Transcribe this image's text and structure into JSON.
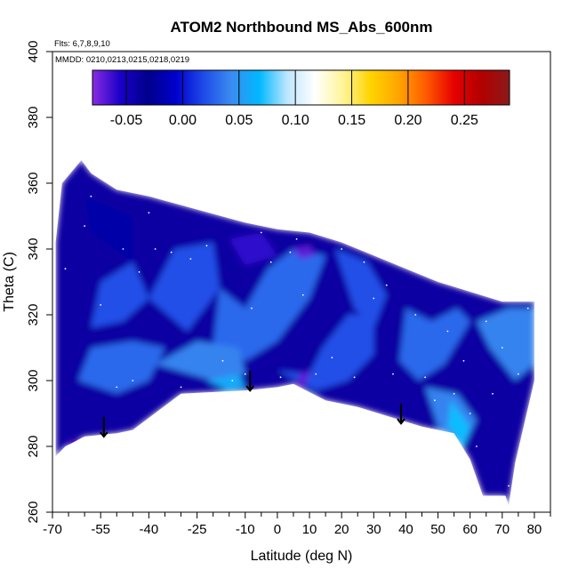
{
  "chart_data": {
    "type": "heatmap",
    "title": "ATOM2 Northbound MS_Abs_600nm",
    "annotations": {
      "flights": "Flts: 6,7,8,9,10",
      "dates": "MMDD: 0210,0213,0215,0218,0219"
    },
    "xlabel": "Latitude (deg N)",
    "ylabel": "Theta (C)",
    "xlim": [
      -70,
      85
    ],
    "ylim": [
      260,
      400
    ],
    "x_major_ticks": [
      -70,
      -55,
      -40,
      -25,
      -10,
      0,
      10,
      20,
      30,
      40,
      50,
      60,
      70,
      80
    ],
    "x_minor_ticks": [
      -65,
      -60,
      -50,
      -45,
      -35,
      -30,
      -20,
      -15,
      -5,
      5,
      15,
      25,
      35,
      45,
      55,
      65,
      75,
      85
    ],
    "y_ticks": [
      260,
      280,
      300,
      320,
      340,
      360,
      380,
      400
    ],
    "colorbar": {
      "range": [
        -0.08,
        0.29
      ],
      "ticks": [
        -0.05,
        0.0,
        0.05,
        0.1,
        0.15,
        0.2,
        0.25
      ],
      "tick_labels": [
        "-0.05",
        "0.00",
        "0.05",
        "0.10",
        "0.15",
        "0.20",
        "0.25"
      ],
      "colors": [
        "#8a2be2",
        "#1a00c8",
        "#00008b",
        "#0000cd",
        "#1e4be8",
        "#3a8cf0",
        "#00b8ff",
        "#bde6ff",
        "#ffffff",
        "#fff59a",
        "#ffd400",
        "#ffa500",
        "#ff5a00",
        "#e60000",
        "#b20000",
        "#8b1a1a"
      ]
    },
    "domain_boundary": {
      "top": [
        [
          -69,
          342
        ],
        [
          -67,
          360
        ],
        [
          -61,
          367
        ],
        [
          -58,
          363
        ],
        [
          -50,
          358
        ],
        [
          -40,
          356
        ],
        [
          -25,
          352
        ],
        [
          -10,
          348
        ],
        [
          0,
          346
        ],
        [
          10,
          345
        ],
        [
          20,
          342
        ],
        [
          30,
          338
        ],
        [
          40,
          334
        ],
        [
          50,
          330
        ],
        [
          60,
          327
        ],
        [
          70,
          324
        ],
        [
          80,
          324
        ]
      ],
      "bottom": [
        [
          -69,
          277
        ],
        [
          -66,
          280
        ],
        [
          -60,
          283
        ],
        [
          -50,
          284
        ],
        [
          -45,
          285
        ],
        [
          -30,
          296
        ],
        [
          -10,
          297
        ],
        [
          0,
          298
        ],
        [
          5,
          299
        ],
        [
          15,
          294
        ],
        [
          25,
          292
        ],
        [
          35,
          289
        ],
        [
          45,
          286
        ],
        [
          50,
          285
        ],
        [
          55,
          284
        ],
        [
          60,
          276
        ],
        [
          64,
          265
        ],
        [
          71,
          265
        ],
        [
          72,
          262
        ],
        [
          74,
          275
        ],
        [
          80,
          300
        ]
      ]
    },
    "field_regions": [
      {
        "polygon": [
          [
            -69,
            342
          ],
          [
            -67,
            360
          ],
          [
            -61,
            367
          ],
          [
            -58,
            363
          ],
          [
            -50,
            358
          ],
          [
            -40,
            356
          ],
          [
            -25,
            352
          ],
          [
            -10,
            348
          ],
          [
            0,
            346
          ],
          [
            10,
            345
          ],
          [
            20,
            342
          ],
          [
            30,
            338
          ],
          [
            40,
            334
          ],
          [
            50,
            330
          ],
          [
            60,
            327
          ],
          [
            70,
            324
          ],
          [
            80,
            324
          ],
          [
            80,
            300
          ],
          [
            74,
            275
          ],
          [
            72,
            262
          ],
          [
            71,
            265
          ],
          [
            64,
            265
          ],
          [
            60,
            276
          ],
          [
            55,
            284
          ],
          [
            50,
            285
          ],
          [
            45,
            286
          ],
          [
            35,
            289
          ],
          [
            25,
            292
          ],
          [
            15,
            294
          ],
          [
            5,
            299
          ],
          [
            0,
            298
          ],
          [
            -10,
            297
          ],
          [
            -30,
            296
          ],
          [
            -45,
            285
          ],
          [
            -50,
            284
          ],
          [
            -60,
            283
          ],
          [
            -66,
            280
          ],
          [
            -69,
            277
          ]
        ],
        "value": -0.04
      },
      {
        "polygon": [
          [
            -60,
            356
          ],
          [
            -45,
            350
          ],
          [
            -45,
            336
          ],
          [
            -58,
            345
          ]
        ],
        "value": -0.02
      },
      {
        "polygon": [
          [
            -55,
            330
          ],
          [
            -45,
            336
          ],
          [
            -40,
            325
          ],
          [
            -48,
            318
          ],
          [
            -58,
            316
          ]
        ],
        "value": 0.02
      },
      {
        "polygon": [
          [
            -40,
            325
          ],
          [
            -32,
            340
          ],
          [
            -20,
            342
          ],
          [
            -18,
            328
          ],
          [
            -28,
            315
          ]
        ],
        "value": 0.02
      },
      {
        "polygon": [
          [
            -18,
            328
          ],
          [
            -10,
            322
          ],
          [
            -3,
            334
          ],
          [
            5,
            340
          ],
          [
            15,
            338
          ],
          [
            10,
            325
          ],
          [
            0,
            312
          ],
          [
            -10,
            306
          ],
          [
            -20,
            310
          ]
        ],
        "value": 0.03
      },
      {
        "polygon": [
          [
            -62,
            300
          ],
          [
            -50,
            296
          ],
          [
            -40,
            300
          ],
          [
            -35,
            310
          ],
          [
            -45,
            312
          ],
          [
            -58,
            310
          ]
        ],
        "value": 0.03
      },
      {
        "polygon": [
          [
            -38,
            305
          ],
          [
            -20,
            300
          ],
          [
            -10,
            302
          ],
          [
            -12,
            310
          ],
          [
            -25,
            312
          ]
        ],
        "value": 0.04
      },
      {
        "polygon": [
          [
            -22,
            300
          ],
          [
            -15,
            297
          ],
          [
            -10,
            298
          ],
          [
            -12,
            302
          ]
        ],
        "value": 0.06
      },
      {
        "polygon": [
          [
            0,
            303
          ],
          [
            10,
            302
          ],
          [
            14,
            310
          ],
          [
            22,
            320
          ],
          [
            30,
            320
          ],
          [
            30,
            308
          ],
          [
            22,
            300
          ],
          [
            12,
            297
          ]
        ],
        "value": 0.02
      },
      {
        "polygon": [
          [
            18,
            340
          ],
          [
            28,
            336
          ],
          [
            34,
            326
          ],
          [
            30,
            316
          ],
          [
            24,
            322
          ]
        ],
        "value": 0.02
      },
      {
        "polygon": [
          [
            40,
            322
          ],
          [
            48,
            318
          ],
          [
            56,
            322
          ],
          [
            60,
            318
          ],
          [
            52,
            305
          ],
          [
            44,
            300
          ],
          [
            38,
            306
          ]
        ],
        "value": 0.03
      },
      {
        "polygon": [
          [
            46,
            298
          ],
          [
            56,
            296
          ],
          [
            62,
            288
          ],
          [
            58,
            280
          ],
          [
            50,
            286
          ]
        ],
        "value": 0.04
      },
      {
        "polygon": [
          [
            54,
            294
          ],
          [
            60,
            286
          ],
          [
            58,
            280
          ],
          [
            53,
            286
          ]
        ],
        "value": 0.07
      },
      {
        "polygon": [
          [
            62,
            318
          ],
          [
            72,
            322
          ],
          [
            80,
            322
          ],
          [
            80,
            305
          ],
          [
            74,
            300
          ],
          [
            66,
            310
          ]
        ],
        "value": 0.04
      },
      {
        "polygon": [
          [
            -15,
            343
          ],
          [
            -5,
            345
          ],
          [
            0,
            338
          ],
          [
            -10,
            335
          ]
        ],
        "value": -0.06
      },
      {
        "polygon": [
          [
            5,
            340
          ],
          [
            10,
            341
          ],
          [
            12,
            338
          ],
          [
            7,
            337
          ]
        ],
        "value": -0.07
      },
      {
        "polygon": [
          [
            -65,
            281
          ],
          [
            -62,
            282
          ],
          [
            -61,
            280
          ],
          [
            -64,
            279
          ]
        ],
        "value": -0.07
      },
      {
        "polygon": [
          [
            6,
            298
          ],
          [
            9,
            299
          ],
          [
            10,
            303
          ],
          [
            7,
            302
          ]
        ],
        "value": -0.07
      }
    ],
    "markers": [
      {
        "type": "arrow-down",
        "x": -54,
        "y": 289,
        "y_end": 283
      },
      {
        "type": "arrow-down",
        "x": -8.5,
        "y": 303,
        "y_end": 297
      },
      {
        "type": "arrow-down",
        "x": 38.5,
        "y": 293,
        "y_end": 287
      }
    ],
    "sample_points": [
      [
        -66,
        334
      ],
      [
        -60,
        347
      ],
      [
        -58,
        356
      ],
      [
        -55,
        323
      ],
      [
        -50,
        298
      ],
      [
        -48,
        340
      ],
      [
        -45,
        300
      ],
      [
        -43,
        333
      ],
      [
        -40,
        351
      ],
      [
        -38,
        340
      ],
      [
        -33,
        339
      ],
      [
        -30,
        298
      ],
      [
        -27,
        337
      ],
      [
        -22,
        341
      ],
      [
        -20,
        352
      ],
      [
        -17,
        306
      ],
      [
        -14,
        300
      ],
      [
        -10,
        302
      ],
      [
        -8,
        322
      ],
      [
        -5,
        345
      ],
      [
        -2,
        336
      ],
      [
        1,
        301
      ],
      [
        4,
        339
      ],
      [
        6,
        343
      ],
      [
        8,
        326
      ],
      [
        12,
        302
      ],
      [
        14,
        348
      ],
      [
        17,
        307
      ],
      [
        20,
        340
      ],
      [
        24,
        301
      ],
      [
        27,
        336
      ],
      [
        30,
        325
      ],
      [
        34,
        329
      ],
      [
        36,
        302
      ],
      [
        40,
        340
      ],
      [
        43,
        320
      ],
      [
        46,
        301
      ],
      [
        49,
        294
      ],
      [
        51,
        338
      ],
      [
        53,
        315
      ],
      [
        55,
        296
      ],
      [
        58,
        306
      ],
      [
        60,
        290
      ],
      [
        62,
        280
      ],
      [
        65,
        318
      ],
      [
        67,
        296
      ],
      [
        70,
        310
      ],
      [
        72,
        268
      ],
      [
        75,
        302
      ],
      [
        78,
        322
      ]
    ],
    "legend": "colorbar-top"
  }
}
